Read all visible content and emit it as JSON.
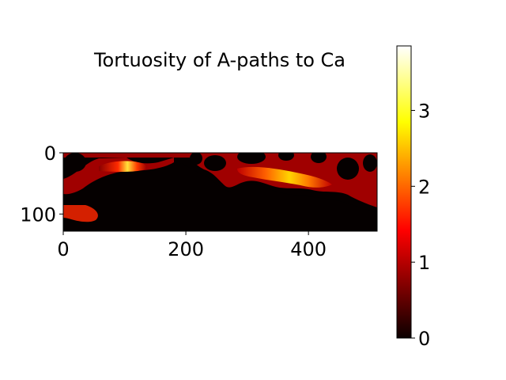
{
  "chart_data": {
    "type": "heatmap",
    "title": "Tortuosity of A-paths to Ca",
    "xlabel": "",
    "ylabel": "",
    "colormap": "hot",
    "image_width": 512,
    "image_height": 128,
    "xlim": [
      0,
      512
    ],
    "ylim": [
      128,
      0
    ],
    "xticks": [
      0,
      200,
      400
    ],
    "yticks": [
      0,
      100
    ],
    "colorbar": {
      "range": [
        0,
        3.85
      ],
      "ticks": [
        0,
        1,
        2,
        3
      ],
      "position": "right"
    },
    "grid": false
  }
}
